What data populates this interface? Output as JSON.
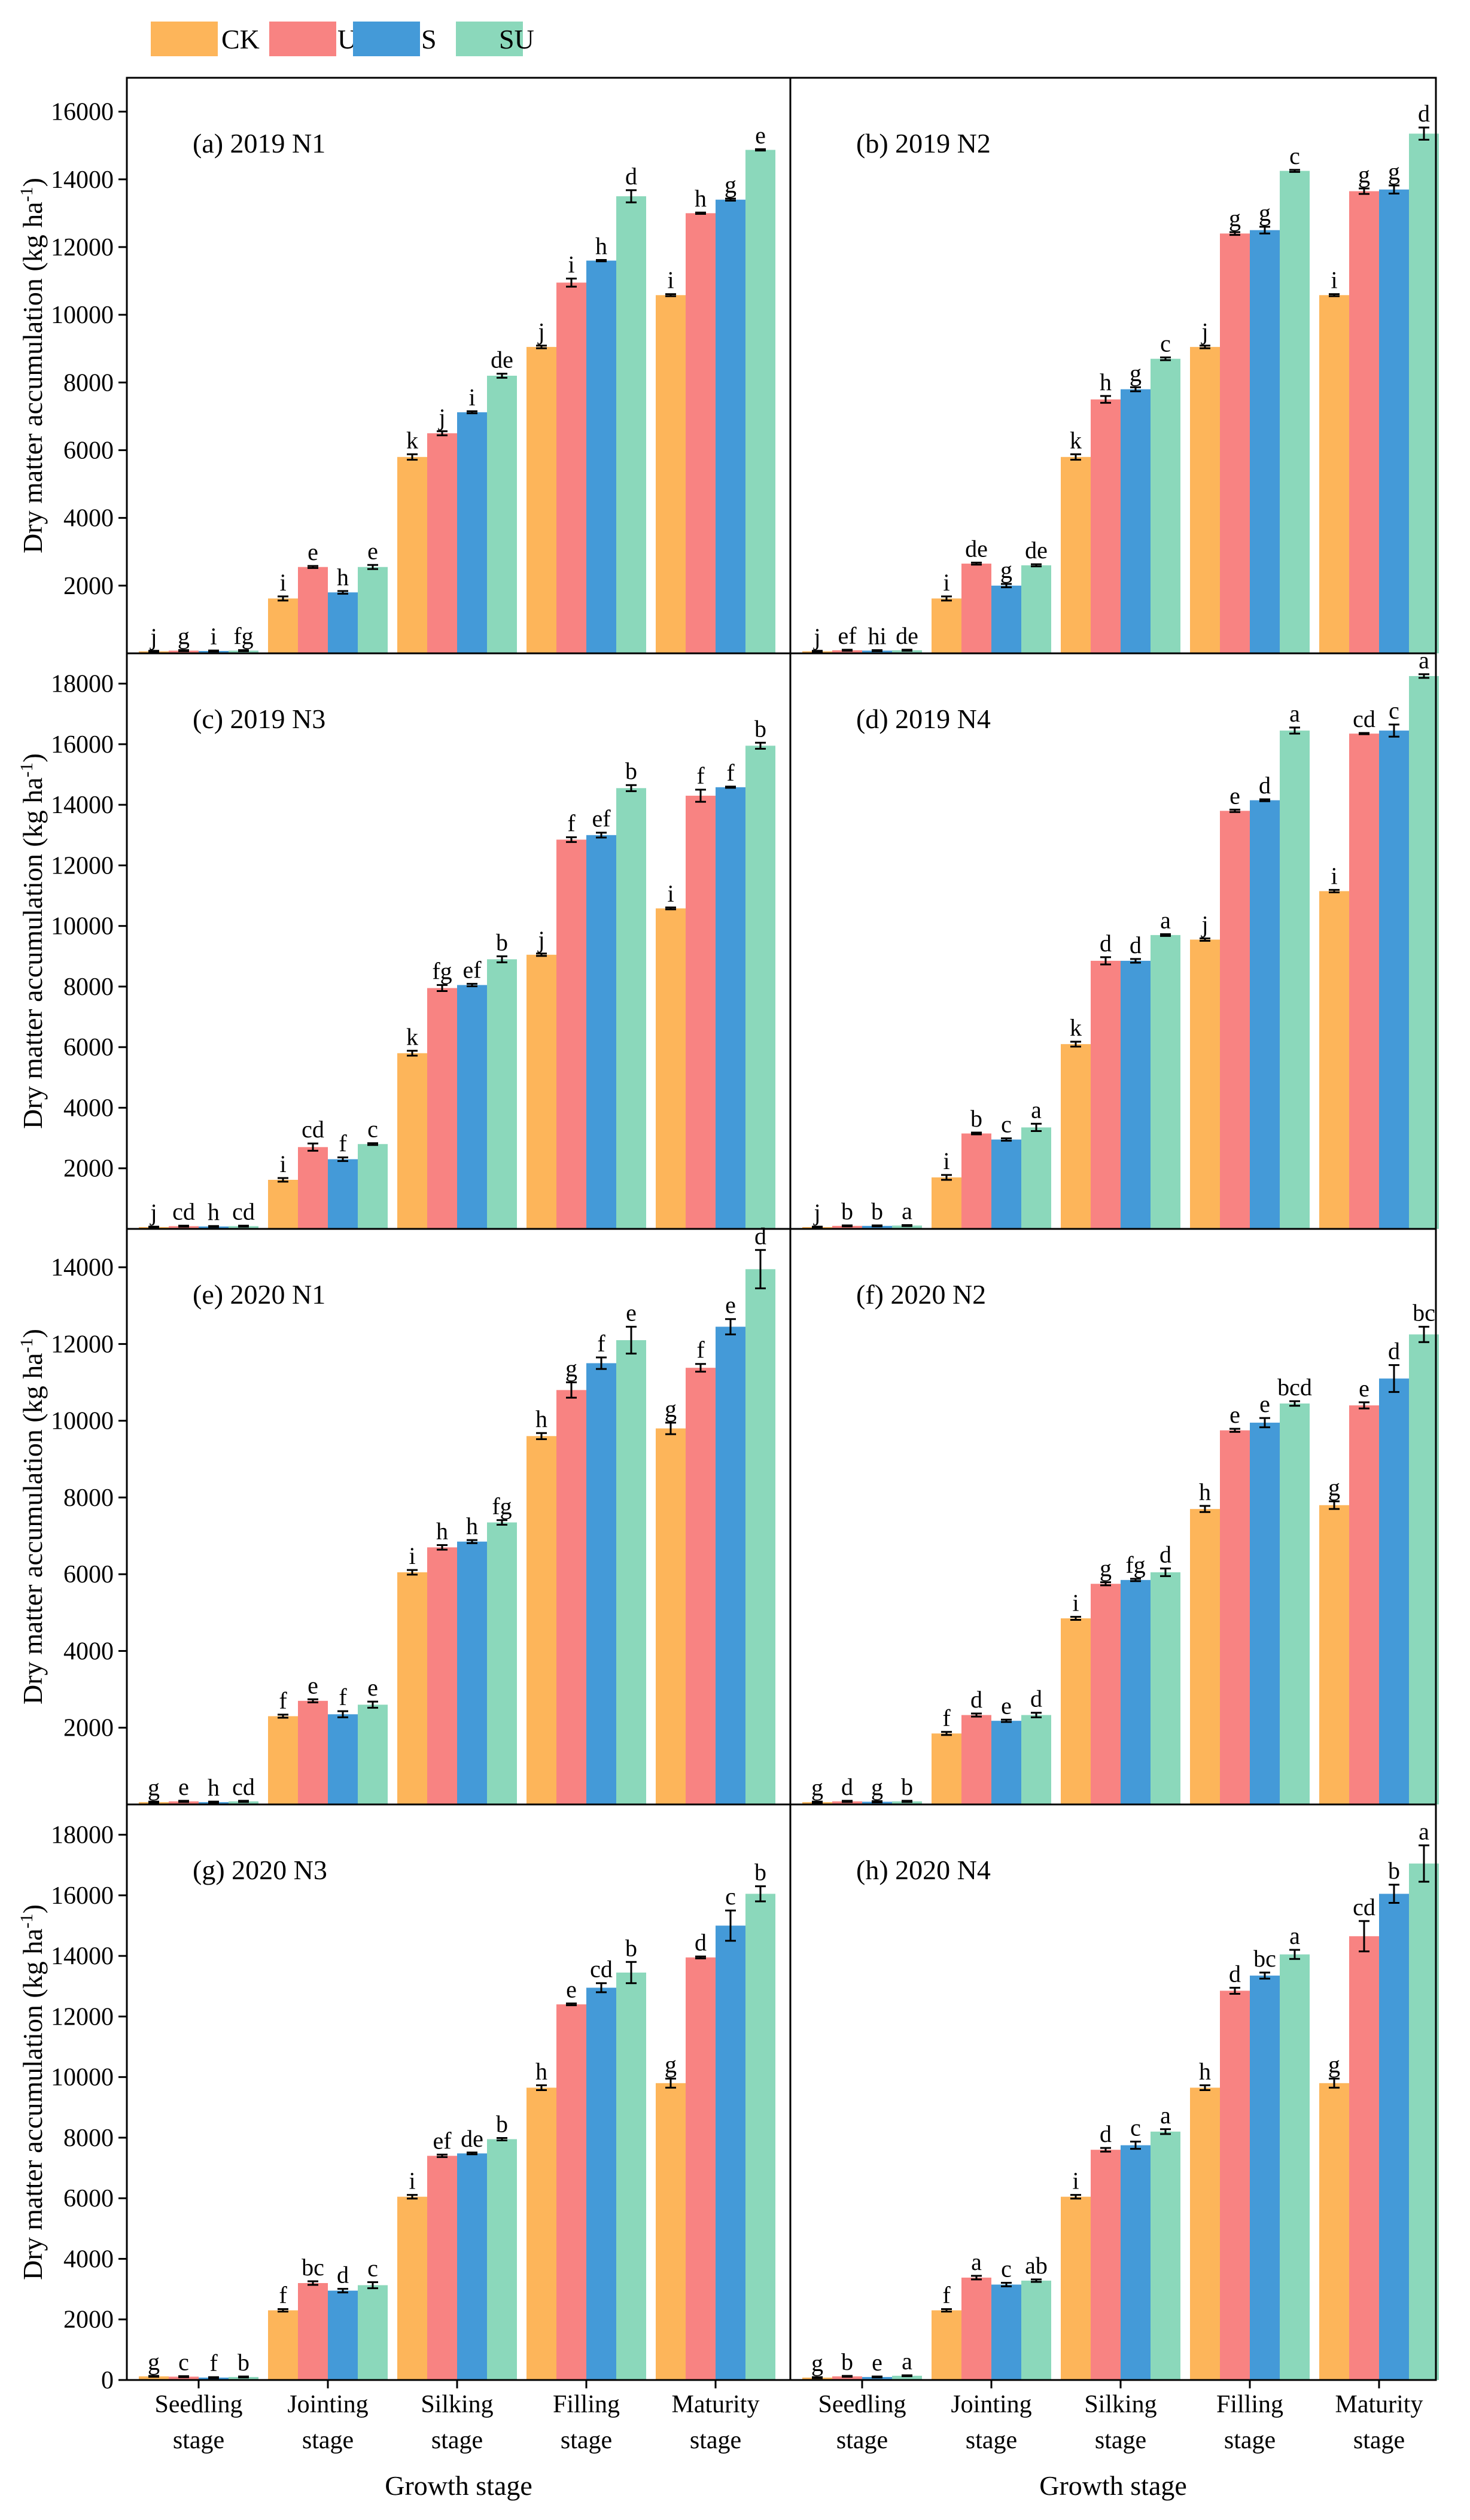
{
  "legend": [
    {
      "name": "CK",
      "color": "#FDB55A"
    },
    {
      "name": "U",
      "color": "#F88382"
    },
    {
      "name": "S",
      "color": "#449AD8"
    },
    {
      "name": "SU",
      "color": "#8BD8BB"
    }
  ],
  "axes": {
    "ylabel": "Dry matter accumulation (kg ha",
    "ylabel_sup": "-1",
    "ylabel_close": ")",
    "xlabel": "Growth stage",
    "x_categories": [
      [
        "Seedling",
        "stage"
      ],
      [
        "Jointing",
        "stage"
      ],
      [
        "Silking",
        "stage"
      ],
      [
        "Filling",
        "stage"
      ],
      [
        "Maturity",
        "stage"
      ]
    ]
  },
  "chart_data": [
    {
      "type": "bar",
      "title": "(a) 2019 N1",
      "categories": [
        "Seedling stage",
        "Jointing stage",
        "Silking stage",
        "Filling stage",
        "Maturity stage"
      ],
      "ylim": [
        0,
        17000
      ],
      "yticks": [
        2000,
        4000,
        6000,
        8000,
        10000,
        12000,
        14000,
        16000
      ],
      "series": [
        {
          "name": "CK",
          "values": [
            60,
            1620,
            5800,
            9050,
            10580
          ],
          "errors": [
            15,
            60,
            80,
            40,
            30
          ],
          "letters": [
            "j",
            "i",
            "k",
            "j",
            "i"
          ]
        },
        {
          "name": "U",
          "values": [
            80,
            2550,
            6500,
            10950,
            13000
          ],
          "errors": [
            15,
            30,
            60,
            120,
            20
          ],
          "letters": [
            "g",
            "e",
            "j",
            "i",
            "h"
          ]
        },
        {
          "name": "S",
          "values": [
            70,
            1800,
            7120,
            11600,
            13400
          ],
          "errors": [
            15,
            40,
            30,
            20,
            30
          ],
          "letters": [
            "i",
            "h",
            "i",
            "h",
            "g"
          ]
        },
        {
          "name": "SU",
          "values": [
            80,
            2550,
            8200,
            13500,
            14870
          ],
          "errors": [
            15,
            60,
            60,
            180,
            20
          ],
          "letters": [
            "fg",
            "e",
            "de",
            "d",
            "e"
          ]
        }
      ]
    },
    {
      "type": "bar",
      "title": "(b) 2019 N2",
      "categories": [
        "Seedling stage",
        "Jointing stage",
        "Silking stage",
        "Filling stage",
        "Maturity stage"
      ],
      "ylim": [
        0,
        17000
      ],
      "yticks": [
        2000,
        4000,
        6000,
        8000,
        10000,
        12000,
        14000,
        16000
      ],
      "series": [
        {
          "name": "CK",
          "values": [
            60,
            1620,
            5800,
            9050,
            10580
          ],
          "errors": [
            15,
            60,
            80,
            40,
            30
          ],
          "letters": [
            "j",
            "i",
            "k",
            "j",
            "i"
          ]
        },
        {
          "name": "U",
          "values": [
            90,
            2650,
            7500,
            12400,
            13650
          ],
          "errors": [
            15,
            30,
            100,
            40,
            80
          ],
          "letters": [
            "ef",
            "de",
            "h",
            "g",
            "g"
          ]
        },
        {
          "name": "S",
          "values": [
            80,
            2000,
            7800,
            12500,
            13700
          ],
          "errors": [
            15,
            50,
            60,
            100,
            120
          ],
          "letters": [
            "hi",
            "g",
            "g",
            "g",
            "g"
          ]
        },
        {
          "name": "SU",
          "values": [
            90,
            2600,
            8700,
            14250,
            15350
          ],
          "errors": [
            15,
            30,
            40,
            30,
            180
          ],
          "letters": [
            "de",
            "de",
            "c",
            "c",
            "d"
          ]
        }
      ]
    },
    {
      "type": "bar",
      "title": "(c) 2019 N3",
      "categories": [
        "Seedling stage",
        "Jointing stage",
        "Silking stage",
        "Filling stage",
        "Maturity stage"
      ],
      "ylim": [
        0,
        19000
      ],
      "yticks": [
        2000,
        4000,
        6000,
        8000,
        10000,
        12000,
        14000,
        16000,
        18000
      ],
      "series": [
        {
          "name": "CK",
          "values": [
            60,
            1620,
            5800,
            9050,
            10580
          ],
          "errors": [
            15,
            60,
            80,
            40,
            30
          ],
          "letters": [
            "j",
            "i",
            "k",
            "j",
            "i"
          ]
        },
        {
          "name": "U",
          "values": [
            90,
            2700,
            7950,
            12850,
            14300
          ],
          "errors": [
            15,
            120,
            100,
            80,
            200
          ],
          "letters": [
            "cd",
            "cd",
            "fg",
            "f",
            "f"
          ]
        },
        {
          "name": "S",
          "values": [
            80,
            2300,
            8050,
            13000,
            14580
          ],
          "errors": [
            15,
            60,
            40,
            80,
            20
          ],
          "letters": [
            "h",
            "f",
            "ef",
            "ef",
            "f"
          ]
        },
        {
          "name": "SU",
          "values": [
            90,
            2800,
            8900,
            14550,
            15950
          ],
          "errors": [
            15,
            30,
            100,
            100,
            100
          ],
          "letters": [
            "cd",
            "c",
            "b",
            "b",
            "b"
          ]
        }
      ]
    },
    {
      "type": "bar",
      "title": "(d) 2019 N4",
      "categories": [
        "Seedling stage",
        "Jointing stage",
        "Silking stage",
        "Filling stage",
        "Maturity stage"
      ],
      "ylim": [
        0,
        19000
      ],
      "yticks": [
        2000,
        4000,
        6000,
        8000,
        10000,
        12000,
        14000,
        16000,
        18000
      ],
      "series": [
        {
          "name": "CK",
          "values": [
            60,
            1700,
            6100,
            9550,
            11150
          ],
          "errors": [
            15,
            80,
            80,
            40,
            40
          ],
          "letters": [
            "j",
            "i",
            "k",
            "j",
            "i"
          ]
        },
        {
          "name": "U",
          "values": [
            100,
            3150,
            8850,
            13800,
            16350
          ],
          "errors": [
            15,
            30,
            120,
            40,
            20
          ],
          "letters": [
            "b",
            "b",
            "d",
            "e",
            "cd"
          ]
        },
        {
          "name": "S",
          "values": [
            100,
            2950,
            8850,
            14150,
            16450
          ],
          "errors": [
            15,
            40,
            60,
            30,
            200
          ],
          "letters": [
            "b",
            "c",
            "d",
            "d",
            "c"
          ]
        },
        {
          "name": "SU",
          "values": [
            110,
            3350,
            9700,
            16450,
            18250
          ],
          "errors": [
            15,
            120,
            30,
            100,
            60
          ],
          "letters": [
            "a",
            "a",
            "a",
            "a",
            "a"
          ]
        }
      ]
    },
    {
      "type": "bar",
      "title": "(e) 2020 N1",
      "categories": [
        "Seedling stage",
        "Jointing stage",
        "Silking stage",
        "Filling stage",
        "Maturity stage"
      ],
      "ylim": [
        0,
        15000
      ],
      "yticks": [
        2000,
        4000,
        6000,
        8000,
        10000,
        12000,
        14000
      ],
      "series": [
        {
          "name": "CK",
          "values": [
            60,
            2300,
            6050,
            9600,
            9800
          ],
          "errors": [
            15,
            40,
            60,
            80,
            150
          ],
          "letters": [
            "g",
            "f",
            "i",
            "h",
            "g"
          ]
        },
        {
          "name": "U",
          "values": [
            80,
            2700,
            6700,
            10800,
            11380
          ],
          "errors": [
            15,
            40,
            60,
            200,
            100
          ],
          "letters": [
            "e",
            "e",
            "h",
            "g",
            "f"
          ]
        },
        {
          "name": "S",
          "values": [
            60,
            2350,
            6850,
            11500,
            12450
          ],
          "errors": [
            15,
            80,
            40,
            150,
            200
          ],
          "letters": [
            "h",
            "f",
            "h",
            "f",
            "e"
          ]
        },
        {
          "name": "SU",
          "values": [
            80,
            2600,
            7350,
            12100,
            13950
          ],
          "errors": [
            15,
            80,
            60,
            350,
            500
          ],
          "letters": [
            "cd",
            "e",
            "fg",
            "e",
            "d"
          ]
        }
      ]
    },
    {
      "type": "bar",
      "title": "(f) 2020 N2",
      "categories": [
        "Seedling stage",
        "Jointing stage",
        "Silking stage",
        "Filling stage",
        "Maturity stage"
      ],
      "ylim": [
        0,
        15000
      ],
      "yticks": [
        2000,
        4000,
        6000,
        8000,
        10000,
        12000,
        14000
      ],
      "series": [
        {
          "name": "CK",
          "values": [
            60,
            1850,
            4850,
            7700,
            7800
          ],
          "errors": [
            15,
            40,
            40,
            80,
            100
          ],
          "letters": [
            "g",
            "f",
            "i",
            "h",
            "g"
          ]
        },
        {
          "name": "U",
          "values": [
            80,
            2330,
            5750,
            9750,
            10400
          ],
          "errors": [
            15,
            40,
            40,
            40,
            80
          ],
          "letters": [
            "d",
            "d",
            "g",
            "e",
            "e"
          ]
        },
        {
          "name": "S",
          "values": [
            70,
            2180,
            5850,
            9950,
            11100
          ],
          "errors": [
            15,
            30,
            30,
            120,
            350
          ],
          "letters": [
            "g",
            "e",
            "fg",
            "e",
            "d"
          ]
        },
        {
          "name": "SU",
          "values": [
            80,
            2330,
            6050,
            10450,
            12250
          ],
          "errors": [
            15,
            60,
            100,
            60,
            200
          ],
          "letters": [
            "b",
            "d",
            "d",
            "bcd",
            "bc"
          ]
        }
      ]
    },
    {
      "type": "bar",
      "title": "(g) 2020 N3",
      "categories": [
        "Seedling stage",
        "Jointing stage",
        "Silking stage",
        "Filling stage",
        "Maturity stage"
      ],
      "ylim": [
        0,
        19000
      ],
      "yticks": [
        2000,
        4000,
        6000,
        8000,
        10000,
        12000,
        14000,
        16000,
        18000
      ],
      "series": [
        {
          "name": "CK",
          "values": [
            120,
            2300,
            6050,
            9650,
            9800
          ],
          "errors": [
            15,
            40,
            60,
            80,
            150
          ],
          "letters": [
            "g",
            "f",
            "i",
            "h",
            "g"
          ]
        },
        {
          "name": "U",
          "values": [
            110,
            3200,
            7400,
            12400,
            13950
          ],
          "errors": [
            15,
            60,
            40,
            30,
            30
          ],
          "letters": [
            "c",
            "bc",
            "ef",
            "e",
            "d"
          ]
        },
        {
          "name": "S",
          "values": [
            80,
            2950,
            7480,
            12950,
            15000
          ],
          "errors": [
            15,
            60,
            30,
            150,
            500
          ],
          "letters": [
            "f",
            "d",
            "de",
            "cd",
            "c"
          ]
        },
        {
          "name": "SU",
          "values": [
            100,
            3130,
            7950,
            13450,
            16050
          ],
          "errors": [
            15,
            100,
            40,
            350,
            250
          ],
          "letters": [
            "b",
            "c",
            "b",
            "b",
            "b"
          ]
        }
      ]
    },
    {
      "type": "bar",
      "title": "(h) 2020 N4",
      "categories": [
        "Seedling stage",
        "Jointing stage",
        "Silking stage",
        "Filling stage",
        "Maturity stage"
      ],
      "ylim": [
        0,
        19000
      ],
      "yticks": [
        2000,
        4000,
        6000,
        8000,
        10000,
        12000,
        14000,
        16000,
        18000
      ],
      "series": [
        {
          "name": "CK",
          "values": [
            80,
            2300,
            6050,
            9650,
            9800
          ],
          "errors": [
            15,
            40,
            60,
            80,
            150
          ],
          "letters": [
            "g",
            "f",
            "i",
            "h",
            "g"
          ]
        },
        {
          "name": "U",
          "values": [
            120,
            3380,
            7600,
            12850,
            14650
          ],
          "errors": [
            15,
            60,
            60,
            100,
            500
          ],
          "letters": [
            "b",
            "a",
            "d",
            "d",
            "cd"
          ]
        },
        {
          "name": "S",
          "values": [
            100,
            3150,
            7750,
            13350,
            16050
          ],
          "errors": [
            15,
            60,
            120,
            100,
            300
          ],
          "letters": [
            "e",
            "c",
            "c",
            "bc",
            "b"
          ]
        },
        {
          "name": "SU",
          "values": [
            140,
            3280,
            8200,
            14050,
            17050
          ],
          "errors": [
            15,
            40,
            80,
            150,
            600
          ],
          "letters": [
            "a",
            "ab",
            "a",
            "a",
            "a"
          ]
        }
      ]
    }
  ]
}
